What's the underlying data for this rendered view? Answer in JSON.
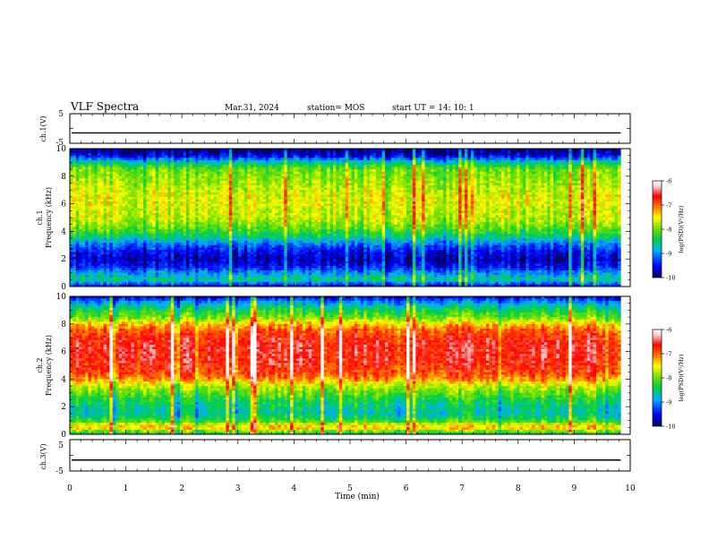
{
  "header": {
    "title": "VLF Spectra",
    "date": "Mar.31, 2024",
    "station": "station= MOS",
    "start": "start  UT =   14: 10: 1"
  },
  "colors": {
    "colormap": [
      "#000080",
      "#0000ff",
      "#00a0ff",
      "#00e0ff",
      "#00d040",
      "#80e000",
      "#ffff00",
      "#ff8000",
      "#ff0000",
      "#ffffff"
    ]
  },
  "chart_data": [
    {
      "type": "line",
      "name": "ch1-waveform",
      "ylabel": "ch.1(V)",
      "ylim": [
        -5,
        5
      ],
      "yticks": [
        "5",
        "-5"
      ],
      "xlim": [
        0,
        10
      ],
      "level": -1.5,
      "grid": false
    },
    {
      "type": "heatmap",
      "name": "ch1-spectrogram",
      "ylabel_line1": "ch.1",
      "ylabel_line2": "Frequency (kHz)",
      "ylim": [
        0,
        10
      ],
      "yticks": [
        "0",
        "2",
        "4",
        "6",
        "8",
        "10"
      ],
      "xlim": [
        0,
        9.83
      ],
      "profile": {
        "freq_khz": [
          0,
          0.5,
          1.0,
          1.5,
          2.0,
          2.5,
          3.0,
          3.5,
          4.0,
          4.5,
          5.0,
          5.5,
          6.0,
          6.5,
          7.0,
          7.5,
          8.0,
          8.5,
          9.0,
          9.5,
          10.0
        ],
        "log_psd": [
          -9.6,
          -8.5,
          -9.0,
          -9.5,
          -9.7,
          -9.5,
          -9.2,
          -8.6,
          -8.2,
          -7.9,
          -7.7,
          -7.7,
          -7.6,
          -7.6,
          -7.7,
          -7.8,
          -7.9,
          -8.0,
          -8.6,
          -9.6,
          -9.9
        ]
      },
      "colorbar": {
        "label": "log(PSD)(V²/Hz)",
        "range": [
          -10,
          -6
        ],
        "ticks": [
          "-6",
          "-7",
          "-8",
          "-9",
          "-10"
        ]
      }
    },
    {
      "type": "heatmap",
      "name": "ch2-spectrogram",
      "ylabel_line1": "ch.2",
      "ylabel_line2": "Frequency (kHz)",
      "ylim": [
        0,
        10
      ],
      "yticks": [
        "0",
        "2",
        "4",
        "6",
        "8",
        "10"
      ],
      "xlim": [
        0,
        9.83
      ],
      "profile": {
        "freq_khz": [
          0,
          0.5,
          1.0,
          1.5,
          2.0,
          2.5,
          3.0,
          3.5,
          4.0,
          4.5,
          5.0,
          5.5,
          6.0,
          6.5,
          7.0,
          7.5,
          8.0,
          8.5,
          9.0,
          9.5,
          10.0
        ],
        "log_psd": [
          -8.5,
          -7.2,
          -8.2,
          -8.6,
          -8.5,
          -8.3,
          -8.0,
          -7.7,
          -7.1,
          -6.8,
          -6.7,
          -6.6,
          -6.6,
          -6.6,
          -6.7,
          -6.9,
          -7.3,
          -8.0,
          -8.3,
          -8.8,
          -9.6
        ]
      },
      "colorbar": {
        "label": "log(PSD)(V²/Hz)",
        "range": [
          -10,
          -6
        ],
        "ticks": [
          "-6",
          "-7",
          "-8",
          "-9",
          "-10"
        ]
      }
    },
    {
      "type": "line",
      "name": "ch3-waveform",
      "ylabel": "ch.3(V)",
      "ylim": [
        -5,
        5
      ],
      "yticks": [
        "5",
        "-5"
      ],
      "xlim": [
        0,
        10
      ],
      "level": -1.5,
      "grid": false
    }
  ],
  "xaxis": {
    "label": "Time  (min)",
    "range": [
      0,
      10
    ],
    "ticks": [
      "0",
      "1",
      "2",
      "3",
      "4",
      "5",
      "6",
      "7",
      "8",
      "9",
      "10"
    ]
  }
}
